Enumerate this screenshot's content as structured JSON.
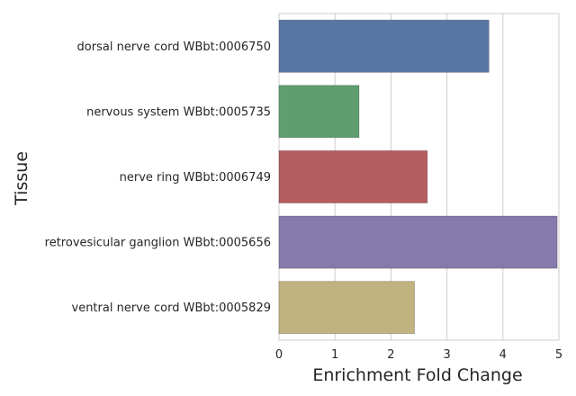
{
  "chart_data": {
    "type": "bar",
    "orientation": "horizontal",
    "categories": [
      "dorsal nerve cord WBbt:0006750",
      "nervous system WBbt:0005735",
      "nerve ring WBbt:0006749",
      "retrovesicular ganglion WBbt:0005656",
      "ventral nerve cord WBbt:0005829"
    ],
    "values": [
      3.75,
      1.43,
      2.65,
      4.97,
      2.42
    ],
    "colors": [
      "#5975a4",
      "#5f9e6e",
      "#b55d60",
      "#857aab",
      "#c1b37f"
    ],
    "xlabel": "Enrichment Fold Change",
    "ylabel": "Tissue",
    "xlim": [
      0,
      5
    ],
    "xticks": [
      "0",
      "1",
      "2",
      "3",
      "4",
      "5"
    ],
    "grid": "vertical",
    "legend": "none"
  }
}
